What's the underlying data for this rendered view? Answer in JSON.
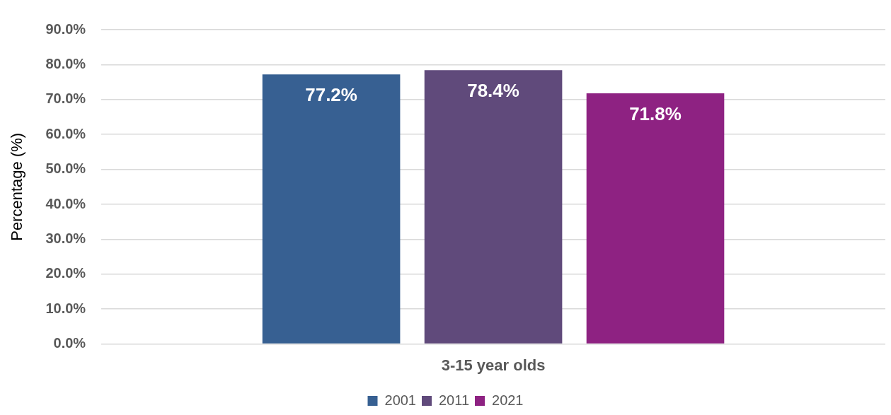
{
  "chart_data": {
    "type": "bar",
    "ylabel": "Percentage (%)",
    "categories": [
      "3-15 year olds"
    ],
    "series": [
      {
        "name": "2001",
        "color": "#376092",
        "values": [
          77.2
        ],
        "value_labels": [
          "77.2%"
        ]
      },
      {
        "name": "2011",
        "color": "#604a7b",
        "values": [
          78.4
        ],
        "value_labels": [
          "78.4%"
        ]
      },
      {
        "name": "2021",
        "color": "#8e2282",
        "values": [
          71.8
        ],
        "value_labels": [
          "71.8%"
        ]
      }
    ],
    "ylim": [
      0,
      90
    ],
    "yticks": [
      {
        "value": 0,
        "label": "0.0%"
      },
      {
        "value": 10,
        "label": "10.0%"
      },
      {
        "value": 20,
        "label": "20.0%"
      },
      {
        "value": 30,
        "label": "30.0%"
      },
      {
        "value": 40,
        "label": "40.0%"
      },
      {
        "value": 50,
        "label": "50.0%"
      },
      {
        "value": 60,
        "label": "60.0%"
      },
      {
        "value": 70,
        "label": "70.0%"
      },
      {
        "value": 80,
        "label": "80.0%"
      },
      {
        "value": 90,
        "label": "90.0%"
      }
    ],
    "grid": "y",
    "legend": "bottom"
  }
}
